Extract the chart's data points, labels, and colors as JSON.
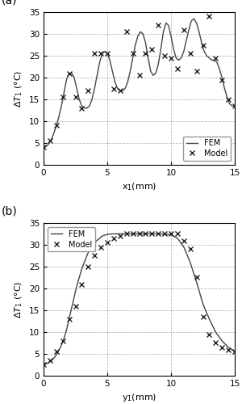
{
  "panel_a": {
    "label": "(a)",
    "xlabel": "x$_1$(mm)",
    "ylabel": "$\\Delta T_1$ (°C)",
    "xlim": [
      0,
      15
    ],
    "ylim": [
      0,
      35
    ],
    "yticks": [
      0,
      5,
      10,
      15,
      20,
      25,
      30,
      35
    ],
    "xticks": [
      0,
      5,
      10,
      15
    ],
    "fem_x": [
      0.0,
      0.2,
      0.4,
      0.6,
      0.8,
      1.0,
      1.2,
      1.4,
      1.6,
      1.8,
      2.0,
      2.2,
      2.4,
      2.6,
      2.8,
      3.0,
      3.2,
      3.4,
      3.6,
      3.8,
      4.0,
      4.2,
      4.4,
      4.6,
      4.8,
      5.0,
      5.2,
      5.4,
      5.6,
      5.8,
      6.0,
      6.2,
      6.4,
      6.6,
      6.8,
      7.0,
      7.2,
      7.4,
      7.6,
      7.8,
      8.0,
      8.2,
      8.4,
      8.6,
      8.8,
      9.0,
      9.2,
      9.4,
      9.6,
      9.8,
      10.0,
      10.2,
      10.4,
      10.6,
      10.8,
      11.0,
      11.2,
      11.4,
      11.6,
      11.8,
      12.0,
      12.2,
      12.4,
      12.6,
      12.8,
      13.0,
      13.2,
      13.4,
      13.6,
      13.8,
      14.0,
      14.2,
      14.4,
      14.6,
      14.8,
      15.0
    ],
    "fem_y": [
      4.0,
      4.2,
      4.8,
      5.8,
      7.2,
      9.0,
      11.0,
      13.5,
      16.5,
      19.5,
      21.0,
      21.0,
      20.0,
      17.5,
      15.0,
      13.5,
      13.0,
      13.0,
      13.5,
      15.0,
      17.5,
      20.5,
      23.5,
      25.5,
      26.0,
      25.5,
      24.0,
      21.5,
      19.0,
      17.5,
      17.0,
      17.0,
      17.5,
      19.0,
      21.5,
      24.5,
      27.5,
      29.5,
      30.5,
      30.0,
      28.0,
      24.5,
      21.5,
      20.5,
      21.0,
      23.0,
      26.5,
      30.5,
      32.5,
      32.0,
      29.5,
      26.5,
      24.5,
      24.0,
      24.5,
      26.0,
      28.5,
      31.0,
      33.0,
      33.5,
      32.5,
      30.5,
      28.0,
      26.0,
      25.0,
      24.5,
      24.0,
      24.0,
      23.5,
      22.0,
      20.0,
      17.5,
      15.5,
      14.0,
      13.5,
      13.5
    ],
    "model_x": [
      0.0,
      0.5,
      1.0,
      1.5,
      2.0,
      2.5,
      3.0,
      3.5,
      4.0,
      4.5,
      5.0,
      5.5,
      6.0,
      6.5,
      7.0,
      7.5,
      8.0,
      8.5,
      9.0,
      9.5,
      10.0,
      10.5,
      11.0,
      11.5,
      12.0,
      12.5,
      13.0,
      13.5,
      14.0,
      14.5,
      15.0
    ],
    "model_y": [
      4.0,
      5.5,
      9.0,
      15.5,
      21.0,
      15.5,
      13.0,
      17.0,
      25.5,
      25.5,
      25.5,
      17.5,
      17.0,
      30.5,
      25.5,
      20.5,
      25.5,
      26.5,
      32.0,
      25.0,
      24.5,
      22.0,
      31.0,
      25.5,
      21.5,
      27.5,
      34.0,
      24.5,
      19.5,
      15.0,
      13.5
    ],
    "legend_loc": "lower right"
  },
  "panel_b": {
    "label": "(b)",
    "xlabel": "y$_1$(mm)",
    "ylabel": "$\\Delta T_1$ (°C)",
    "xlim": [
      0,
      15
    ],
    "ylim": [
      0,
      35
    ],
    "yticks": [
      0,
      5,
      10,
      15,
      20,
      25,
      30,
      35
    ],
    "xticks": [
      0,
      5,
      10,
      15
    ],
    "fem_x": [
      0.0,
      0.2,
      0.4,
      0.6,
      0.8,
      1.0,
      1.2,
      1.4,
      1.6,
      1.8,
      2.0,
      2.2,
      2.4,
      2.6,
      2.8,
      3.0,
      3.2,
      3.4,
      3.6,
      3.8,
      4.0,
      4.2,
      4.4,
      4.6,
      4.8,
      5.0,
      5.5,
      6.0,
      6.5,
      7.0,
      7.5,
      8.0,
      8.5,
      9.0,
      9.5,
      10.0,
      10.5,
      11.0,
      11.5,
      12.0,
      12.5,
      13.0,
      13.5,
      14.0,
      14.5,
      15.0
    ],
    "fem_y": [
      2.5,
      2.7,
      3.0,
      3.4,
      4.0,
      4.8,
      5.8,
      7.0,
      8.5,
      10.5,
      13.0,
      15.5,
      18.0,
      20.5,
      22.5,
      24.5,
      26.0,
      27.5,
      28.8,
      29.8,
      30.5,
      31.0,
      31.5,
      32.0,
      32.2,
      32.4,
      32.5,
      32.5,
      32.5,
      32.5,
      32.5,
      32.5,
      32.5,
      32.5,
      32.4,
      32.3,
      31.5,
      29.5,
      26.0,
      21.5,
      16.5,
      13.0,
      10.0,
      8.0,
      6.5,
      5.5
    ],
    "model_x": [
      0.0,
      0.5,
      1.0,
      1.5,
      2.0,
      2.5,
      3.0,
      3.5,
      4.0,
      4.5,
      5.0,
      5.5,
      6.0,
      6.5,
      7.0,
      7.5,
      8.0,
      8.5,
      9.0,
      9.5,
      10.0,
      10.5,
      11.0,
      11.5,
      12.0,
      12.5,
      13.0,
      13.5,
      14.0,
      14.5,
      15.0
    ],
    "model_y": [
      2.5,
      3.5,
      5.5,
      8.0,
      13.0,
      16.0,
      21.0,
      25.0,
      27.5,
      29.5,
      30.5,
      31.5,
      32.0,
      32.5,
      32.5,
      32.5,
      32.5,
      32.5,
      32.5,
      32.5,
      32.5,
      32.5,
      31.0,
      29.0,
      22.5,
      13.5,
      9.5,
      7.5,
      6.5,
      6.0,
      5.5
    ],
    "legend_loc": "upper left"
  },
  "line_color": "#444444",
  "marker_color": "#222222",
  "grid_color": "#bbbbbb",
  "line_width": 1.0,
  "marker_size": 4.5,
  "marker_edge_width": 1.0
}
